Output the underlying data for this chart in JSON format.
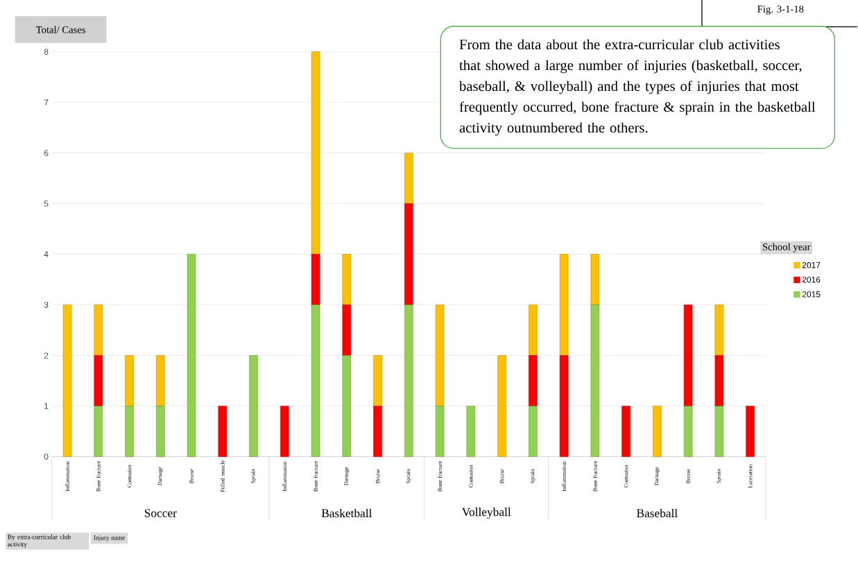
{
  "chart_data": {
    "type": "bar",
    "stacked": true,
    "ylabel": "Total/ Cases",
    "legend_title": "School year",
    "legend": "right",
    "grid": "y",
    "categories": [
      "Inflammation",
      "Bone fracture",
      "Contusion",
      "Damage",
      "Bruise",
      "Pulled muscle",
      "Sprain",
      "Inflammation",
      "Bone fracture",
      "Damage",
      "Bruise",
      "Sprain",
      "Bone fracture",
      "Contusion",
      "Bruise",
      "Sprain",
      "Inflammation",
      "Bone fracture",
      "Contusion",
      "Damage",
      "Bruise",
      "Sprain",
      "Laceration"
    ],
    "series": [
      {
        "name": "2015",
        "color": "#92d050",
        "values": [
          0,
          1,
          1,
          1,
          4,
          0,
          2,
          0,
          3,
          2,
          0,
          3,
          1,
          1,
          0,
          1,
          0,
          3,
          0,
          0,
          1,
          1,
          0
        ]
      },
      {
        "name": "2016",
        "color": "#ff0000",
        "values": [
          0,
          1,
          0,
          0,
          0,
          1,
          0,
          1,
          1,
          1,
          1,
          2,
          0,
          0,
          0,
          1,
          2,
          0,
          1,
          0,
          2,
          1,
          1
        ]
      },
      {
        "name": "2017",
        "color": "#ffc000",
        "values": [
          3,
          1,
          1,
          1,
          0,
          0,
          0,
          0,
          4,
          1,
          1,
          1,
          2,
          0,
          2,
          1,
          2,
          1,
          0,
          1,
          0,
          1,
          0
        ]
      }
    ],
    "ylim": [
      0,
      8
    ],
    "yticks": [
      0,
      1,
      2,
      3,
      4,
      5,
      6,
      7,
      8
    ],
    "annotations": [
      "Fig. 3-1-18",
      "From the data about the extra-curricular club activities that showed a large number of injuries (basketball, soccer, baseball, & volleyball) and the types of injuries that most frequently occurred, bone fracture & sprain in the basketball activity outnumbered the others.",
      "By extra-curricular club activity",
      "Injury name",
      "Soccer",
      "Basketball",
      "Volleyball",
      "Baseball"
    ]
  }
}
